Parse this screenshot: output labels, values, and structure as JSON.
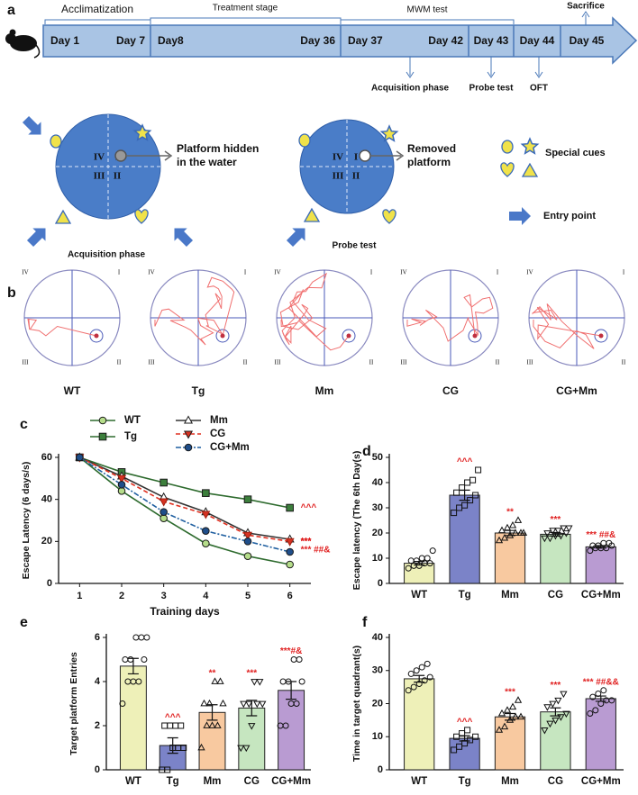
{
  "panel_labels": [
    "a",
    "b",
    "c",
    "d",
    "e",
    "f"
  ],
  "timeline": {
    "stages": [
      "Acclimatization",
      "Treatment stage",
      "MWM test",
      "Sacrifice"
    ],
    "segments": [
      {
        "start": "Day 1",
        "end": "Day 7"
      },
      {
        "start": "Day8",
        "end": "Day 36"
      },
      {
        "start": "Day 37",
        "end": "Day 42"
      },
      {
        "start": "Day 43"
      },
      {
        "start": "Day 44"
      },
      {
        "start": "Day 45"
      }
    ],
    "below": [
      "Acquisition phase",
      "Probe test",
      "OFT"
    ]
  },
  "schematic": {
    "quadrants": [
      "IV",
      "I",
      "III",
      "II"
    ],
    "hidden_platform": [
      "Platform hidden",
      "in the water"
    ],
    "acquisition": "Acquisition phase",
    "removed_platform": [
      "Removed",
      "platform"
    ],
    "probe": "Probe test",
    "cues": "Special cues",
    "entry": "Entry point"
  },
  "tracks": {
    "quadrants": [
      "IV",
      "I",
      "III",
      "II"
    ],
    "groups": [
      "WT",
      "Tg",
      "Mm",
      "CG",
      "CG+Mm"
    ]
  },
  "chart_data": [
    {
      "type": "line",
      "xlabel": "Training days",
      "ylabel": "Escape Latency (6 days/s)",
      "x": [
        1,
        2,
        3,
        4,
        5,
        6
      ],
      "xlim": [
        0.5,
        6.5
      ],
      "xticks": [
        1,
        2,
        3,
        4,
        5,
        6
      ],
      "ylim": [
        0,
        60
      ],
      "yticks": [
        0,
        20,
        40,
        60
      ],
      "series": [
        {
          "name": "WT",
          "color": "#2e6b2e",
          "marker_color": "#b5dd8a",
          "marker": "circle",
          "dash": "",
          "values": [
            60,
            44,
            31,
            19,
            13,
            9
          ]
        },
        {
          "name": "Tg",
          "color": "#2e6b2e",
          "marker_color": "#3c7f3c",
          "marker": "square",
          "dash": "",
          "values": [
            60,
            53,
            48,
            43,
            40,
            36
          ],
          "annotation": "^^^"
        },
        {
          "name": "Mm",
          "color": "#333333",
          "marker_color": "#ffffff",
          "marker": "triangle",
          "dash": "",
          "values": [
            60,
            51,
            41,
            34,
            24,
            21
          ],
          "annotation": "***"
        },
        {
          "name": "CG",
          "color": "#e03020",
          "marker_color": "#d63222",
          "marker": "tri-down",
          "dash": "5 3",
          "values": [
            60,
            50,
            39,
            33,
            23,
            20
          ],
          "annotation": "***"
        },
        {
          "name": "CG+Mm",
          "color": "#1f5fa0",
          "marker_color": "#1f4e8a",
          "marker": "circle",
          "dash": "6 2 2 2",
          "values": [
            60,
            47,
            34,
            25,
            20,
            15
          ],
          "annotation": "*** ##&"
        }
      ]
    },
    {
      "type": "bar",
      "ylabel": "Escape latency (The 6th Day(s)",
      "categories": [
        "WT",
        "Tg",
        "Mm",
        "CG",
        "CG+Mm"
      ],
      "colors": [
        "#eef0b8",
        "#7b83c8",
        "#f8c9a0",
        "#c6e6c0",
        "#b99bd2"
      ],
      "values": [
        8,
        35,
        20,
        19.5,
        14.5
      ],
      "errors": [
        0.7,
        2,
        1,
        0.7,
        0.5
      ],
      "annotations": [
        null,
        "^^^",
        "**",
        "***",
        "*** ##&"
      ],
      "points": [
        [
          6,
          7,
          7,
          8,
          8,
          9,
          9,
          10,
          10,
          13
        ],
        [
          28,
          30,
          31,
          33,
          35,
          36,
          38,
          40,
          41,
          45
        ],
        [
          17,
          18,
          19,
          20,
          20,
          21,
          22,
          23,
          25,
          20
        ],
        [
          18,
          18,
          19,
          19,
          20,
          20,
          21,
          21,
          22,
          22
        ],
        [
          13,
          14,
          14,
          14,
          15,
          15,
          15,
          16,
          16
        ]
      ],
      "ylim": [
        0,
        50
      ],
      "yticks": [
        0,
        10,
        20,
        30,
        40,
        50
      ]
    },
    {
      "type": "bar",
      "ylabel": "Target platform Entries",
      "categories": [
        "WT",
        "Tg",
        "Mm",
        "CG",
        "CG+Mm"
      ],
      "colors": [
        "#eef0b8",
        "#7b83c8",
        "#f8c9a0",
        "#c6e6c0",
        "#b99bd2"
      ],
      "values": [
        4.7,
        1.1,
        2.6,
        2.8,
        3.6
      ],
      "errors": [
        0.35,
        0.35,
        0.35,
        0.35,
        0.4
      ],
      "annotations": [
        null,
        "^^^",
        "**",
        "***",
        "***#&"
      ],
      "points": [
        [
          3,
          4,
          4,
          4,
          5,
          5,
          5,
          6,
          6,
          6
        ],
        [
          0,
          0,
          1,
          1,
          1,
          2,
          2,
          2,
          2
        ],
        [
          1,
          2,
          2,
          2,
          3,
          3,
          3,
          4,
          4
        ],
        [
          1,
          1,
          2,
          3,
          3,
          3,
          3,
          4,
          4
        ],
        [
          2,
          2,
          3,
          3,
          4,
          4,
          4,
          5,
          5
        ]
      ],
      "ylim": [
        0,
        6
      ],
      "yticks": [
        0,
        2,
        4,
        6
      ]
    },
    {
      "type": "bar",
      "ylabel": "Time in target quadrant(s)",
      "categories": [
        "WT",
        "Tg",
        "Mm",
        "CG",
        "CG+Mm"
      ],
      "colors": [
        "#eef0b8",
        "#7b83c8",
        "#f8c9a0",
        "#c6e6c0",
        "#b99bd2"
      ],
      "values": [
        27.5,
        9.5,
        16,
        17.5,
        21.5
      ],
      "errors": [
        1,
        0.8,
        1,
        1.2,
        0.8
      ],
      "annotations": [
        null,
        "^^^",
        "***",
        "***",
        "*** ##&&"
      ],
      "points": [
        [
          24,
          25,
          26,
          27,
          28,
          29,
          30,
          31,
          32
        ],
        [
          6,
          7,
          8,
          9,
          10,
          10,
          11,
          12
        ],
        [
          12,
          13,
          15,
          16,
          16,
          17,
          18,
          19,
          21
        ],
        [
          12,
          14,
          15,
          16,
          17,
          19,
          20,
          21,
          23
        ],
        [
          17,
          18,
          20,
          21,
          21,
          22,
          23,
          24
        ]
      ],
      "ylim": [
        0,
        40
      ],
      "yticks": [
        0,
        10,
        20,
        30,
        40
      ]
    }
  ]
}
